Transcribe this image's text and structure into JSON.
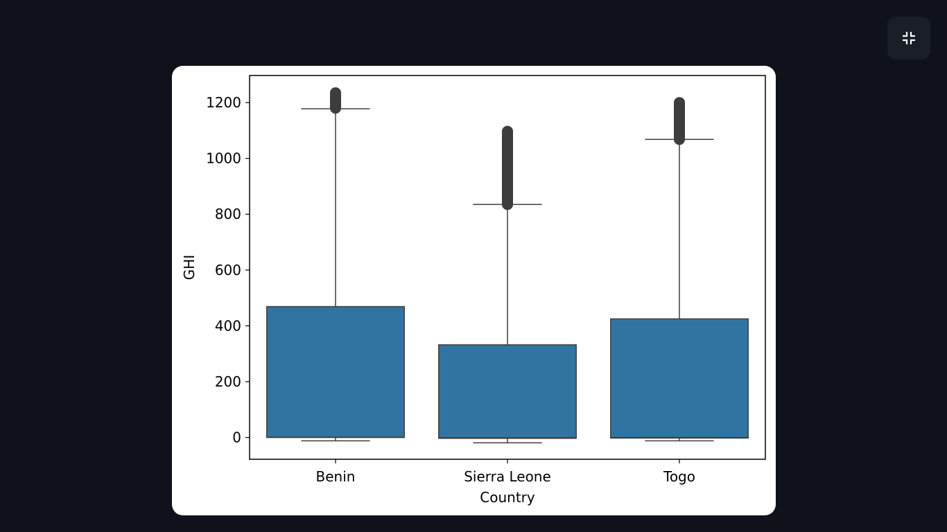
{
  "viewer": {
    "exit_fullscreen_icon": "compress-icon",
    "background": "#0f121a",
    "button_bg": "#1a1e27"
  },
  "chart_data": {
    "type": "box",
    "title": "",
    "xlabel": "Country",
    "ylabel": "GHI",
    "categories": [
      "Benin",
      "Sierra Leone",
      "Togo"
    ],
    "y_ticks": [
      0,
      200,
      400,
      600,
      800,
      1000,
      1200
    ],
    "ylim": [
      -78,
      1297
    ],
    "grid": false,
    "box_color": "#3274a1",
    "line_color": "#3d3d3d",
    "boxes": [
      {
        "category": "Benin",
        "whisker_low": -12,
        "q1": 0,
        "median": 1,
        "q3": 469,
        "whisker_high": 1178,
        "outliers_min": 1180,
        "outliers_max": 1235
      },
      {
        "category": "Sierra Leone",
        "whisker_low": -19,
        "q1": -3,
        "median": -1,
        "q3": 332,
        "whisker_high": 835,
        "outliers_min": 835,
        "outliers_max": 1097
      },
      {
        "category": "Togo",
        "whisker_low": -12,
        "q1": -2,
        "median": 0,
        "q3": 425,
        "whisker_high": 1068,
        "outliers_min": 1068,
        "outliers_max": 1200
      }
    ]
  }
}
